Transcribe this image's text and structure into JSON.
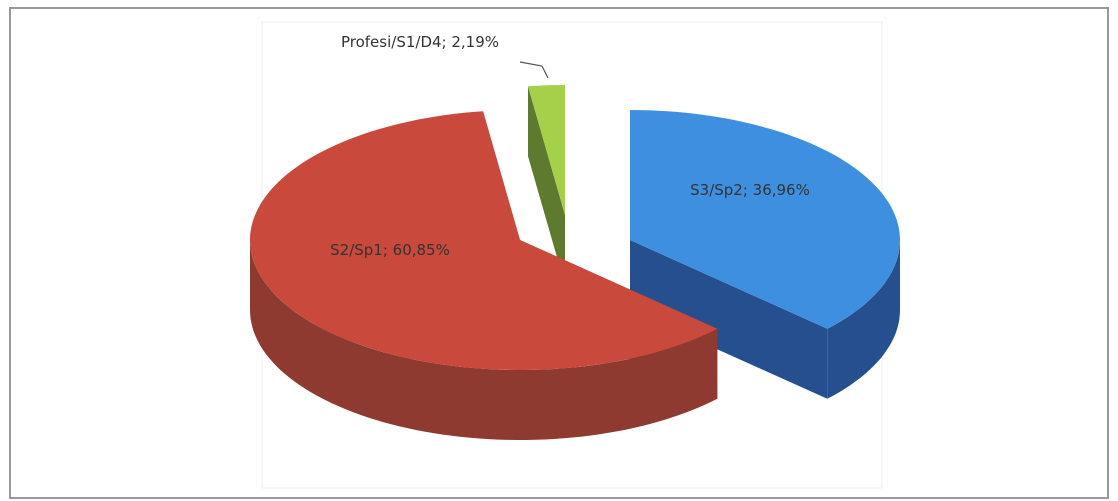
{
  "chart_data": {
    "type": "pie3d",
    "values": [
      36.96,
      60.85,
      2.19
    ],
    "value_labels": [
      "S3/Sp2; 36,96%",
      "S2/Sp1; 60,85%",
      "Profesi/S1/D4; 2,19%"
    ],
    "colors": [
      "#3f8fe0",
      "#c9493c",
      "#a6d04a"
    ],
    "side_colors": [
      "#264f8f",
      "#8e3a30",
      "#5e7a2e"
    ]
  }
}
